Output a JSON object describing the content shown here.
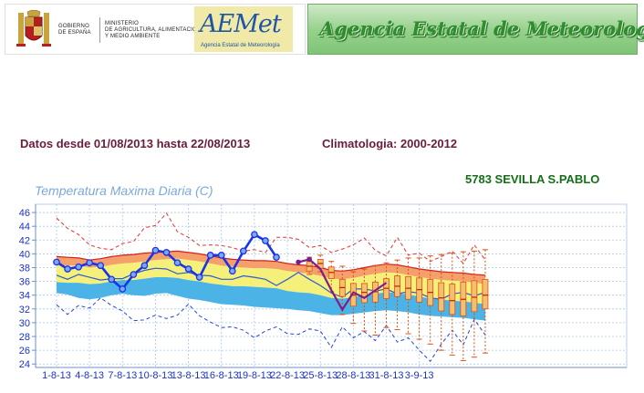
{
  "header": {
    "gov_lines": [
      "GOBIERNO",
      "DE ESPAÑA",
      "MINISTERIO",
      "DE AGRICULTURA, ALIMENTACIÓN",
      "Y MEDIO AMBIENTE"
    ],
    "aemet_wordmark": "AEMet",
    "aemet_tagline": "Agencia Estatal de Meteorología",
    "agency_name": "Agencia Estatal de Meteorología"
  },
  "period_text": "Datos desde 01/08/2013 hasta 22/08/2013",
  "climatology_text": "Climatologia: 2000-2012",
  "station_text": "5783  SEVILLA S.PABLO",
  "chart_title": "Temperatura Maxima Diaria (C)",
  "colors": {
    "observed": "#1a33e6",
    "forecast": "#7b1e8c",
    "climate_max": "#e83030",
    "climate_min": "#2244dd",
    "band_upper": "#f5a06a",
    "band_mid": "#f5f07a",
    "band_lower": "#4bb3e6",
    "grid": "#a8c8f0"
  },
  "chart_data": {
    "type": "line",
    "title": "Temperatura Maxima Diaria (C)",
    "x_tick_labels": [
      "1-8-13",
      "4-8-13",
      "7-8-13",
      "10-8-13",
      "13-8-13",
      "16-8-13",
      "19-8-13",
      "22-8-13",
      "25-8-13",
      "28-8-13",
      "31-8-13",
      "3-9-13"
    ],
    "y_ticks": [
      24,
      26,
      28,
      30,
      32,
      34,
      36,
      38,
      40,
      42,
      44,
      46
    ],
    "ylim": [
      23.5,
      47.2
    ],
    "days": 40,
    "grid": true,
    "observed": [
      38.8,
      37.8,
      38.1,
      38.7,
      38.3,
      36.3,
      34.9,
      37,
      38.3,
      40.5,
      40.2,
      38.7,
      37.8,
      36.6,
      39.8,
      39.8,
      37.5,
      40.4,
      42.8,
      41.9,
      39.5
    ],
    "forecast": [
      null,
      null,
      null,
      null,
      null,
      null,
      null,
      null,
      null,
      null,
      null,
      null,
      null,
      null,
      null,
      null,
      null,
      null,
      null,
      null,
      null,
      null,
      38.8,
      39.2,
      37.8,
      34.7,
      31.9,
      34.4,
      33.6,
      34.7,
      35.8
    ],
    "climate_mean": [
      36.9,
      36.3,
      37,
      36.6,
      36.2,
      36.4,
      36.4,
      37.1,
      37.6,
      37.9,
      37.8,
      37.1,
      37.3,
      36.9,
      36.8,
      36.3,
      36.3,
      36.8,
      36.6,
      36.3,
      35.4,
      36.3,
      37.3,
      36.3,
      35.4,
      34.3,
      33.7,
      34.9,
      34.9,
      34.6,
      34.9,
      34.2,
      34.5,
      34.3,
      33.6,
      33.4,
      34.2,
      34.4,
      33.9,
      34.4
    ],
    "band_top": [
      39.6,
      39.5,
      39.4,
      39.1,
      39.3,
      39.6,
      39.8,
      39.9,
      40.1,
      40.2,
      40.3,
      40.4,
      40.2,
      40,
      39.7,
      39.4,
      39.2,
      39.1,
      39,
      39,
      38.9,
      38.6,
      38.4,
      38.3,
      38,
      37.6,
      37.5,
      37.7,
      38,
      38.3,
      38.5,
      38.4,
      38.1,
      37.8,
      37.6,
      37.4,
      37.3,
      37.2,
      37,
      36.9
    ],
    "band_upper_mid": [
      38.4,
      38.3,
      38.3,
      38,
      38.1,
      38.4,
      38.6,
      38.7,
      38.9,
      39.1,
      39.2,
      39.3,
      39.1,
      38.9,
      38.6,
      38.3,
      38.1,
      38,
      37.9,
      37.9,
      37.8,
      37.5,
      37.3,
      37.1,
      36.8,
      36.4,
      36.3,
      36.5,
      36.8,
      37.1,
      37.3,
      37.2,
      36.9,
      36.6,
      36.4,
      36.2,
      36.1,
      36,
      35.8,
      35.6
    ],
    "band_lower_mid": [
      35.9,
      35.8,
      35.8,
      35.6,
      35.7,
      36,
      36.2,
      36.2,
      36.4,
      36.6,
      36.6,
      36.5,
      36.2,
      36,
      35.7,
      35.5,
      35.3,
      35.3,
      35.2,
      35.1,
      35,
      34.6,
      34.4,
      34.3,
      34,
      33.6,
      33.5,
      33.7,
      34,
      34.2,
      34.4,
      34.3,
      34.1,
      33.8,
      33.5,
      33.4,
      33.2,
      33.1,
      32.9,
      32.7
    ],
    "band_bottom": [
      34.3,
      34.1,
      33.6,
      33.4,
      33.6,
      34,
      34.2,
      34,
      33.9,
      34.2,
      34.3,
      33.9,
      33.5,
      33.3,
      33,
      32.7,
      32.6,
      32.5,
      32.3,
      32.2,
      32.1,
      32,
      31.8,
      31.7,
      31.4,
      31.1,
      31.1,
      31.3,
      31.5,
      31.7,
      31.8,
      31.7,
      31.5,
      31.2,
      31,
      30.9,
      30.8,
      30.7,
      30.5,
      30.3
    ],
    "climate_max": [
      45.2,
      43.7,
      42.8,
      41.3,
      40.8,
      40.6,
      41.5,
      41.8,
      43.8,
      44.1,
      45.9,
      43.2,
      42.4,
      41.2,
      41.3,
      41.2,
      40.9,
      40.4,
      40.6,
      40.2,
      42.4,
      42.4,
      42.1,
      40.9,
      41.2,
      40.2,
      40.7,
      41.3,
      42.3,
      40.5,
      39.7,
      42.4,
      39.8,
      40.1,
      38.9,
      39.6,
      40.4,
      38.6,
      41.3,
      39.1
    ],
    "climate_min": [
      32.6,
      31.2,
      32.5,
      32.1,
      33.6,
      32.5,
      31.7,
      30.3,
      30.4,
      31.1,
      30.6,
      31.1,
      32.7,
      31,
      30.1,
      29.3,
      29.4,
      28.9,
      27.8,
      28.8,
      29.4,
      28.4,
      28.3,
      29.1,
      28.8,
      26.4,
      29.4,
      27.8,
      28.7,
      27.4,
      29.6,
      27.2,
      27.8,
      26,
      24.4,
      26.9,
      28.9,
      26.8,
      30.5,
      28.2
    ],
    "boxplots": [
      {
        "day": 23,
        "q1": 37.5,
        "median": 38.2,
        "q3": 38.9,
        "low": 37,
        "high": 39.5
      },
      {
        "day": 24,
        "q1": 37.9,
        "median": 38.6,
        "q3": 39.2,
        "low": 37.4,
        "high": 39.8
      },
      {
        "day": 25,
        "q1": 36.4,
        "median": 37.3,
        "q3": 38.1,
        "low": 34.5,
        "high": 38.9
      },
      {
        "day": 26,
        "q1": 33.8,
        "median": 35.1,
        "q3": 36.3,
        "low": 31.2,
        "high": 38.2
      },
      {
        "day": 27,
        "q1": 32.4,
        "median": 34,
        "q3": 35.7,
        "low": 29.9,
        "high": 37.4
      },
      {
        "day": 28,
        "q1": 32.9,
        "median": 34.4,
        "q3": 35.7,
        "low": 28.8,
        "high": 37.8
      },
      {
        "day": 29,
        "q1": 33,
        "median": 34.5,
        "q3": 35.9,
        "low": 28.2,
        "high": 38.3
      },
      {
        "day": 30,
        "q1": 33.5,
        "median": 35,
        "q3": 36.4,
        "low": 29.3,
        "high": 38.7
      },
      {
        "day": 31,
        "q1": 33.8,
        "median": 35.3,
        "q3": 36.8,
        "low": 29,
        "high": 39.1
      },
      {
        "day": 32,
        "q1": 33.4,
        "median": 35,
        "q3": 36.7,
        "low": 28.4,
        "high": 39.4
      },
      {
        "day": 33,
        "q1": 33,
        "median": 34.8,
        "q3": 36.5,
        "low": 27.6,
        "high": 39.4
      },
      {
        "day": 34,
        "q1": 32.5,
        "median": 34.4,
        "q3": 36.3,
        "low": 26.9,
        "high": 39.7
      },
      {
        "day": 35,
        "q1": 31.7,
        "median": 33.6,
        "q3": 35.8,
        "low": 26,
        "high": 39.9
      },
      {
        "day": 36,
        "q1": 31.2,
        "median": 33.2,
        "q3": 35.6,
        "low": 25.3,
        "high": 40.1
      },
      {
        "day": 37,
        "q1": 31,
        "median": 33.4,
        "q3": 35.9,
        "low": 24.5,
        "high": 40.3
      },
      {
        "day": 38,
        "q1": 31.6,
        "median": 33.7,
        "q3": 36.1,
        "low": 25,
        "high": 40.4
      },
      {
        "day": 39,
        "q1": 32,
        "median": 34,
        "q3": 36.3,
        "low": 25.6,
        "high": 40.6
      }
    ]
  }
}
